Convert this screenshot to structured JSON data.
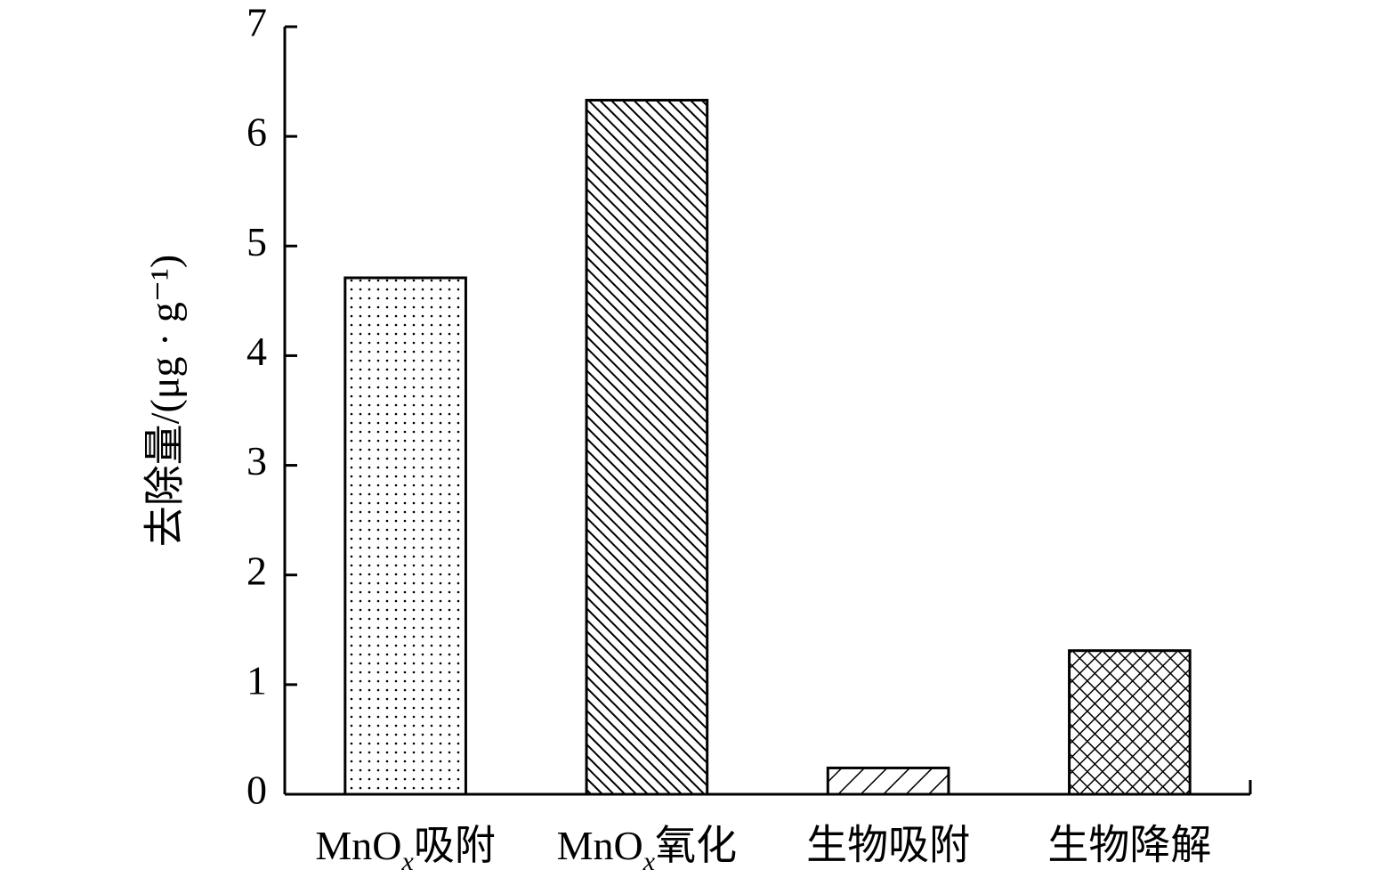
{
  "chart_data": {
    "type": "bar",
    "y_label": "去除量/(μg · g⁻¹)",
    "categories": [
      "MnOx吸附",
      "MnOx氧化",
      "生物吸附",
      "生物降解"
    ],
    "values": [
      4.71,
      6.33,
      0.24,
      1.31
    ],
    "hatches": [
      "dots",
      "backslash",
      "slash",
      "cross"
    ],
    "color": "#000000",
    "ylim": [
      0,
      7
    ],
    "yticks": [
      0,
      1,
      2,
      3,
      4,
      5,
      6,
      7
    ],
    "grid": false
  }
}
